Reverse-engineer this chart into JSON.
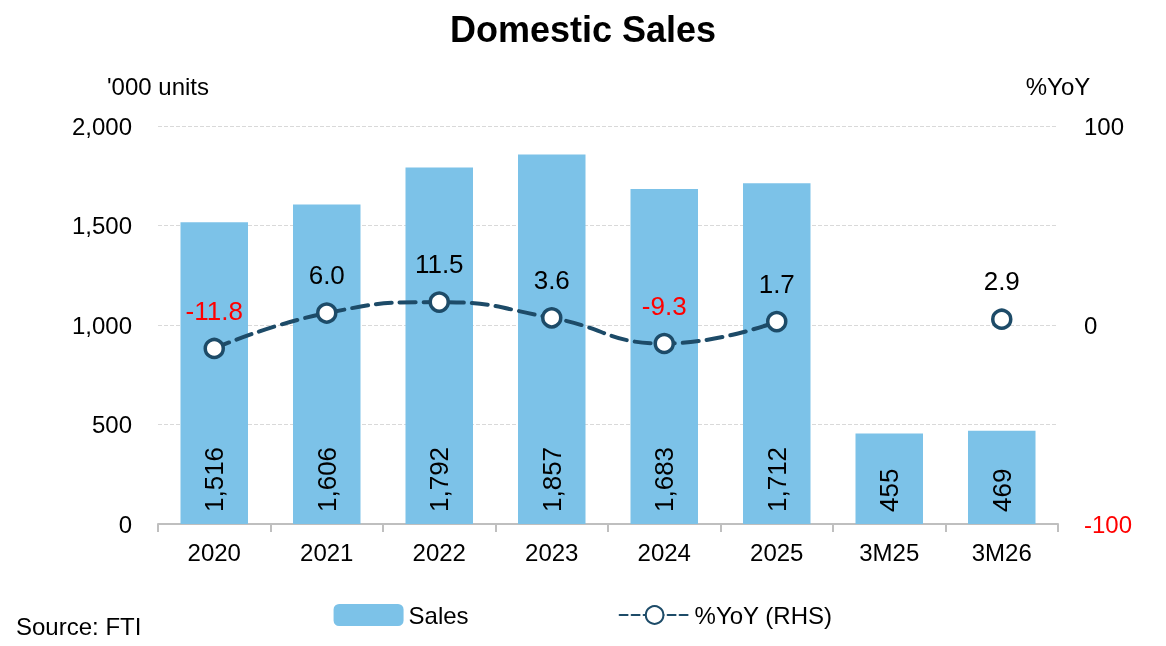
{
  "chart_data": {
    "type": "bar",
    "title": "Domestic Sales",
    "ylabel": "'000 units",
    "y2label": "%YoY",
    "categories": [
      "2020",
      "2021",
      "2022",
      "2023",
      "2024",
      "2025",
      "3M25",
      "3M26"
    ],
    "series": [
      {
        "name": "Sales",
        "color": "#7cc2e8",
        "values": [
          1516,
          1606,
          1792,
          1857,
          1683,
          1712,
          455,
          469
        ],
        "value_labels": [
          "1,516",
          "1,606",
          "1,792",
          "1,857",
          "1,683",
          "1,712",
          "455",
          "469"
        ]
      },
      {
        "name": "%YoY (RHS)",
        "type": "line",
        "axis": "y2",
        "color": "#1d4b68",
        "values": [
          -11.8,
          6.0,
          11.5,
          3.6,
          -9.3,
          1.7,
          null,
          2.9
        ],
        "value_labels": [
          "-11.8",
          "6.0",
          "11.5",
          "3.6",
          "-9.3",
          "1.7",
          null,
          "2.9"
        ]
      }
    ],
    "ylim": [
      0,
      2000
    ],
    "yticks": [
      0,
      {
        "value": 500,
        "label": "500"
      },
      {
        "value": 1000,
        "label": "1,000"
      },
      {
        "value": 1500,
        "label": "1,500"
      },
      {
        "value": 2000,
        "label": "2,000"
      }
    ],
    "y2lim": [
      -100,
      100
    ],
    "y2ticks": [
      -100,
      0,
      100
    ],
    "grid": "y",
    "legend": "bottom",
    "marker": "circle",
    "line_style": "dashed",
    "annotations": [
      "Source: FTI"
    ]
  }
}
